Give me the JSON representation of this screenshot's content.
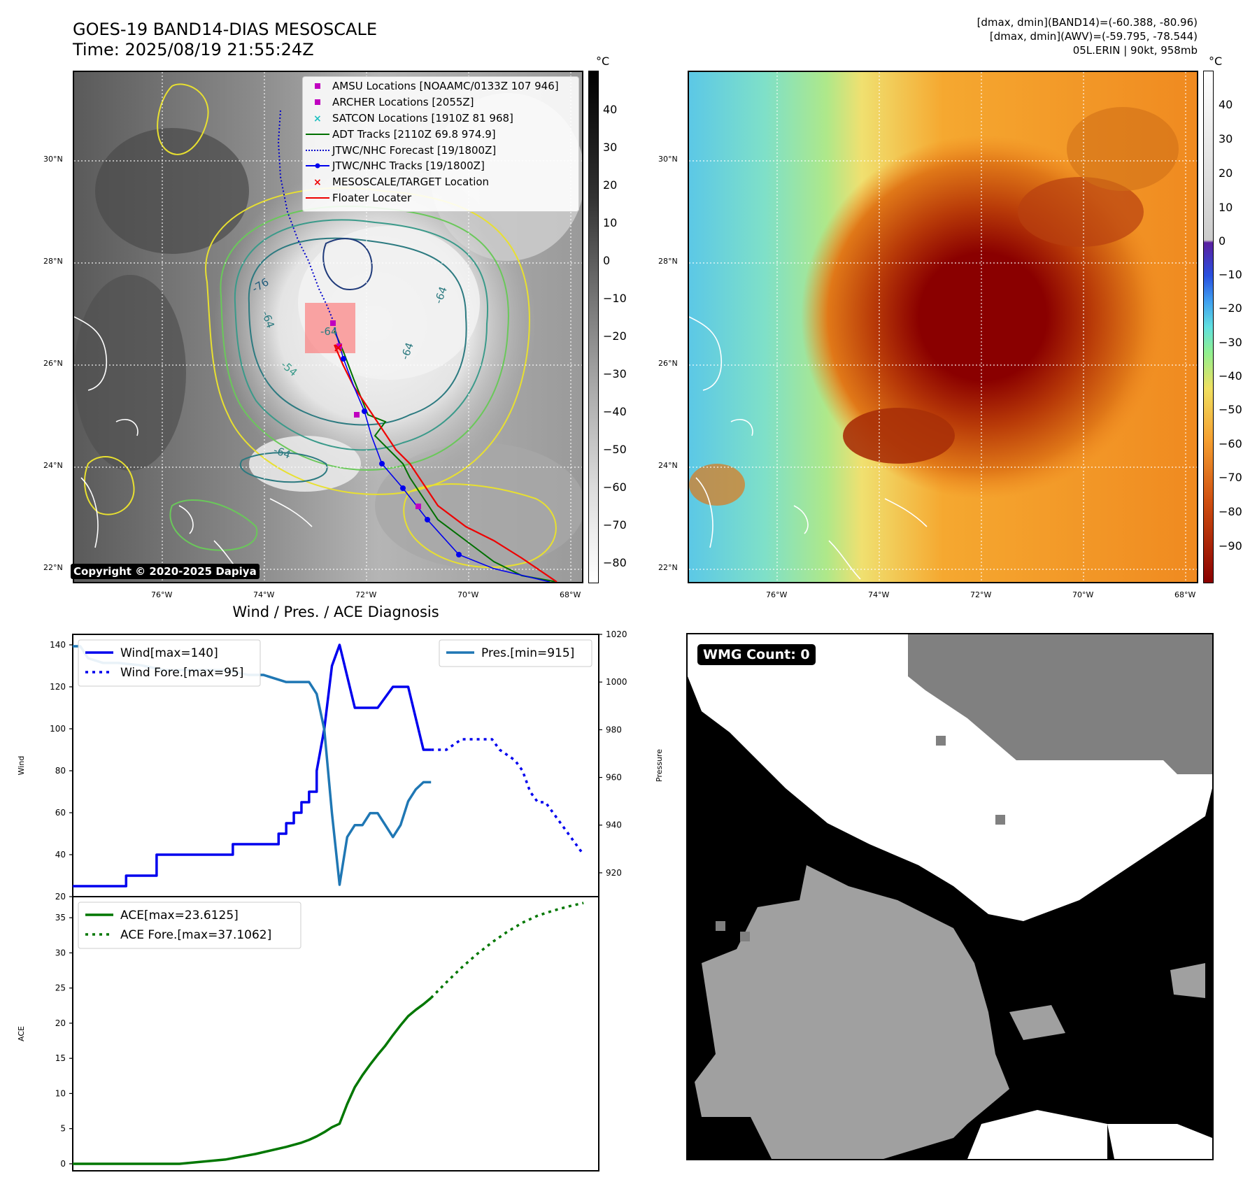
{
  "header": {
    "title_line1": "GOES-19 BAND14-DIAS MESOSCALE",
    "title_line2": "Time: 2025/08/19 21:55:24Z",
    "info_line1": "[dmax, dmin](BAND14)=(-60.388, -80.96)",
    "info_line2": "[dmax, dmin](AWV)=(-59.795, -78.544)",
    "info_line3": "05L.ERIN | 90kt, 958mb"
  },
  "map_axes": {
    "lat_labels": [
      "30°N",
      "28°N",
      "26°N",
      "24°N",
      "22°N"
    ],
    "lon_labels": [
      "76°W",
      "74°W",
      "72°W",
      "70°W",
      "68°W"
    ]
  },
  "colorbar_left": {
    "unit": "°C",
    "labels": [
      "40",
      "30",
      "20",
      "10",
      "0",
      "−10",
      "−20",
      "−30",
      "−40",
      "−50",
      "−60",
      "−70",
      "−80"
    ]
  },
  "colorbar_right": {
    "unit": "°C",
    "labels": [
      "40",
      "30",
      "20",
      "10",
      "0",
      "−10",
      "−20",
      "−30",
      "−40",
      "−50",
      "−60",
      "−70",
      "−80",
      "−90"
    ]
  },
  "map_legend": [
    {
      "label": "AMSU Locations [NOAAMC/0133Z 107 946]",
      "symbol": "square",
      "color": "#c000c0"
    },
    {
      "label": "ARCHER Locations [2055Z]",
      "symbol": "square",
      "color": "#c000c0"
    },
    {
      "label": "SATCON Locations [1910Z 81 968]",
      "symbol": "x",
      "color": "#20c0c0"
    },
    {
      "label": "ADT Tracks [2110Z 69.8 974.9]",
      "symbol": "line",
      "color": "#007000"
    },
    {
      "label": "JTWC/NHC Forecast [19/1800Z]",
      "symbol": "dotted",
      "color": "#0000cc"
    },
    {
      "label": "JTWC/NHC Tracks [19/1800Z]",
      "symbol": "line-dot",
      "color": "#0000ee"
    },
    {
      "label": "MESOSCALE/TARGET Location",
      "symbol": "x",
      "color": "#ee0000"
    },
    {
      "label": "Floater Locater",
      "symbol": "line",
      "color": "#ee0000"
    }
  ],
  "contour_labels": [
    "-76",
    "-64",
    "-64",
    "-64",
    "-64",
    "-54",
    "-64"
  ],
  "copyright": "Copyright © 2020-2025 Dapiya",
  "wmg_label": "WMG Count: 0",
  "chart_data": [
    {
      "type": "line",
      "title": "Wind / Pres. / ACE Diagnosis",
      "ylabel": "Wind",
      "ylabel_right": "Pressure",
      "ylim": [
        20,
        145
      ],
      "ylim_right": [
        910,
        1020
      ],
      "yticks": [
        20,
        40,
        60,
        80,
        100,
        120,
        140
      ],
      "yticks_right": [
        920,
        940,
        960,
        980,
        1000,
        1020
      ],
      "xlim": [
        0,
        69
      ],
      "series": [
        {
          "name": "Wind[max=140]",
          "color": "#0000ee",
          "style": "solid",
          "x": [
            0,
            7,
            7,
            11,
            11,
            14,
            14,
            21,
            21,
            24,
            24,
            27,
            27,
            28,
            28,
            29,
            29,
            30,
            30,
            31,
            31,
            32,
            32,
            33,
            34,
            35,
            36,
            37,
            38,
            40,
            41,
            42,
            43,
            44,
            46,
            47
          ],
          "values": [
            25,
            25,
            30,
            30,
            40,
            40,
            40,
            40,
            45,
            45,
            45,
            45,
            50,
            50,
            55,
            55,
            60,
            60,
            65,
            65,
            70,
            70,
            80,
            100,
            130,
            140,
            125,
            110,
            110,
            110,
            115,
            120,
            120,
            120,
            90,
            90
          ]
        },
        {
          "name": "Wind Fore.[max=95]",
          "color": "#0000ee",
          "style": "dotted",
          "x": [
            47,
            49,
            51,
            52,
            54,
            55,
            56,
            58,
            59,
            60,
            61,
            62,
            63,
            64,
            65,
            66,
            67
          ],
          "values": [
            90,
            90,
            95,
            95,
            95,
            95,
            90,
            85,
            80,
            70,
            65,
            65,
            60,
            55,
            50,
            45,
            40
          ]
        },
        {
          "name": "Pres.[min=915]",
          "color": "#1f77b4",
          "style": "solid",
          "axis": "right",
          "x": [
            0,
            1,
            2,
            4,
            6,
            9,
            12,
            14,
            17,
            20,
            23,
            25,
            28,
            30,
            31,
            32,
            33,
            34,
            35,
            36,
            37,
            38,
            39,
            40,
            41,
            42,
            43,
            44,
            45,
            46,
            47
          ],
          "values": [
            1015,
            1015,
            1010,
            1008,
            1008,
            1007,
            1005,
            1005,
            1005,
            1005,
            1003,
            1003,
            1000,
            1000,
            1000,
            995,
            980,
            945,
            915,
            935,
            940,
            940,
            945,
            945,
            940,
            935,
            940,
            950,
            955,
            958,
            958
          ]
        }
      ]
    },
    {
      "type": "line",
      "ylabel": "ACE",
      "ylim": [
        -1,
        38
      ],
      "yticks": [
        0,
        5,
        10,
        15,
        20,
        25,
        30,
        35
      ],
      "xlim": [
        0,
        69
      ],
      "series": [
        {
          "name": "ACE[max=23.6125]",
          "color": "#007700",
          "style": "solid",
          "x": [
            0,
            7,
            11,
            14,
            20,
            24,
            28,
            30,
            31,
            32,
            33,
            34,
            35,
            36,
            37,
            38,
            39,
            40,
            41,
            42,
            43,
            44,
            45,
            46,
            47
          ],
          "values": [
            0,
            0,
            0,
            0,
            0.6,
            1.4,
            2.4,
            3.0,
            3.4,
            3.9,
            4.5,
            5.2,
            5.7,
            8.5,
            10.9,
            12.6,
            14.1,
            15.5,
            16.8,
            18.3,
            19.7,
            21.0,
            21.9,
            22.7,
            23.6
          ]
        },
        {
          "name": "ACE Fore.[max=37.1062]",
          "color": "#007700",
          "style": "dotted",
          "x": [
            47,
            49,
            51,
            53,
            55,
            57,
            59,
            61,
            63,
            65,
            67
          ],
          "values": [
            23.6,
            25.8,
            27.9,
            29.8,
            31.5,
            33.0,
            34.3,
            35.3,
            36.0,
            36.6,
            37.1
          ]
        }
      ]
    }
  ]
}
